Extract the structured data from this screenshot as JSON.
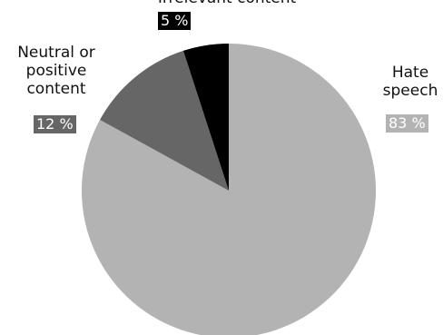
{
  "chart_data": {
    "type": "pie",
    "slices": [
      {
        "label": "Hate\nspeech",
        "value": 83,
        "value_label": "83 %",
        "color": "#b3b3b3"
      },
      {
        "label": "Neutral or\npositive\ncontent",
        "value": 12,
        "value_label": "12 %",
        "color": "#666666"
      },
      {
        "label": "Irrelevant content",
        "value": 5,
        "value_label": "5 %",
        "color": "#000000"
      }
    ]
  }
}
